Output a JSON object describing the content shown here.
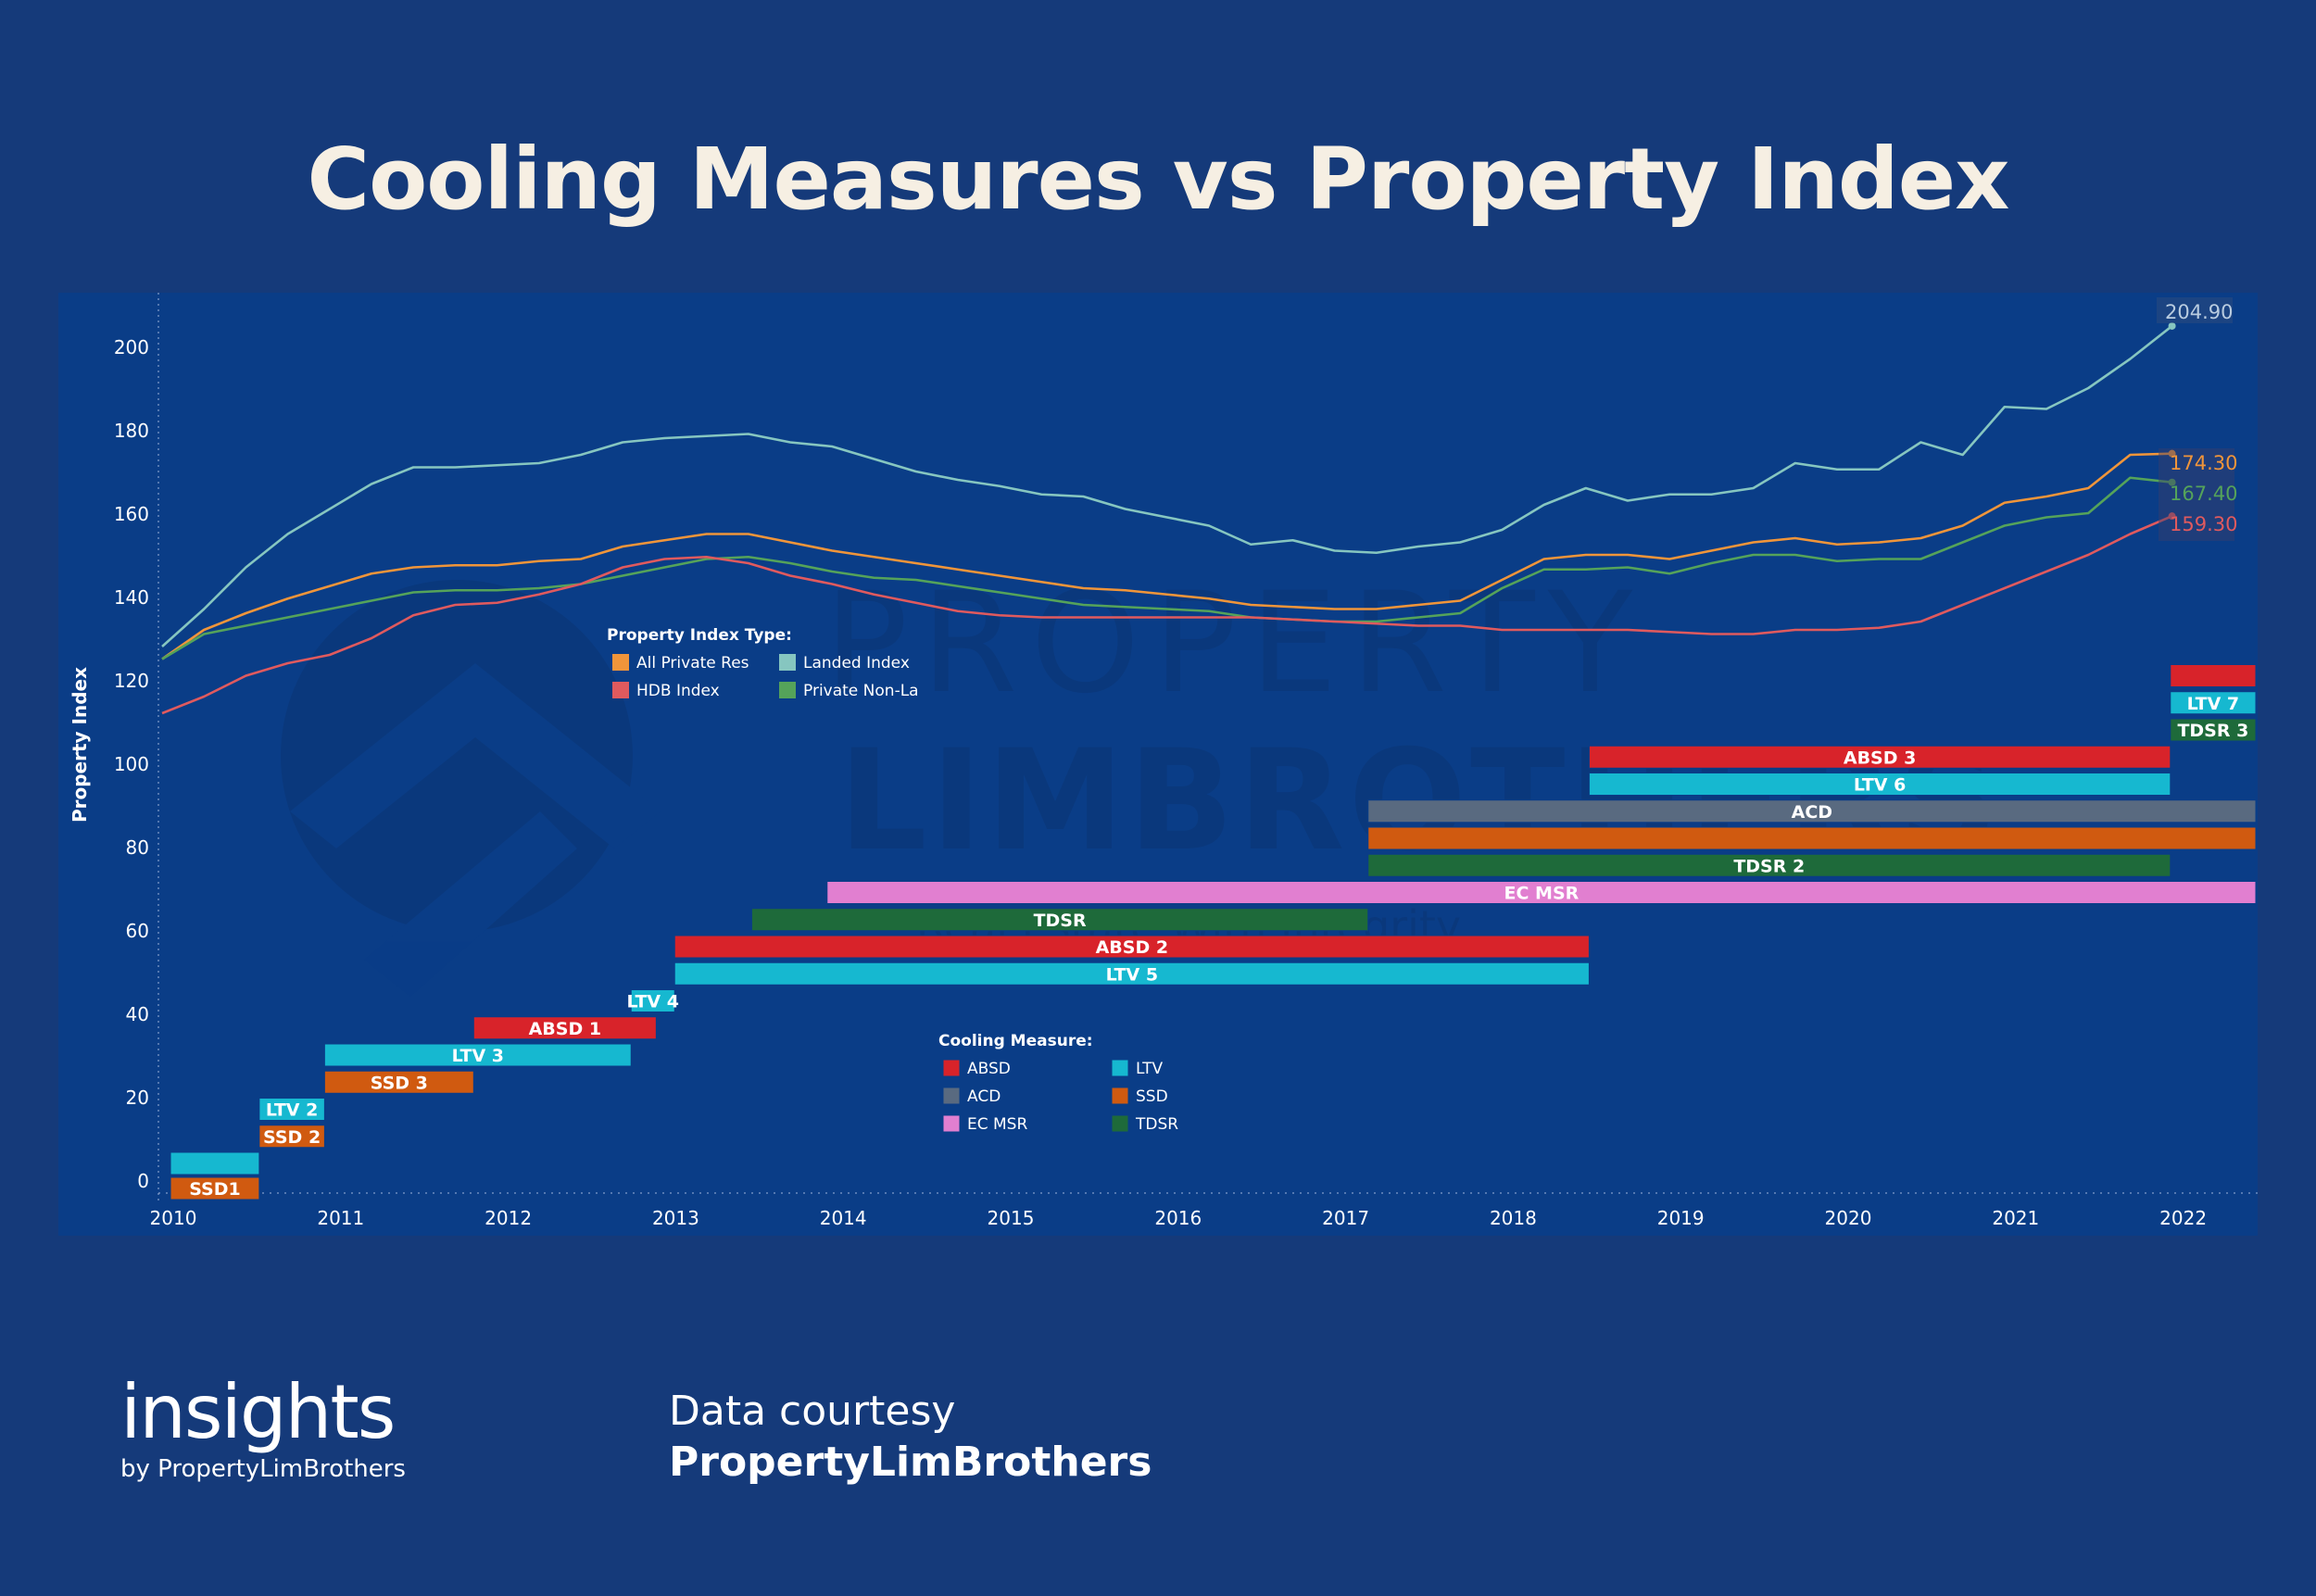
{
  "title": "Cooling Measures vs Property Index",
  "brand": {
    "name": "insights",
    "byline": "by PropertyLimBrothers"
  },
  "credit": {
    "line1": "Data courtesy",
    "line2": "PropertyLimBrothers"
  },
  "watermark": {
    "line1": "PROPERTY",
    "line2": "LIMBROTHERS",
    "tagline": "Real Estate With Integrity"
  },
  "chart_data": {
    "type": "line",
    "ylabel": "Property Index",
    "xlabel": "",
    "ylim": [
      -4,
      210
    ],
    "xlim": [
      2010,
      2022.5
    ],
    "yticks": [
      0,
      20,
      40,
      60,
      80,
      100,
      120,
      140,
      160,
      180,
      200
    ],
    "xticks": [
      2010,
      2011,
      2012,
      2013,
      2014,
      2015,
      2016,
      2017,
      2018,
      2019,
      2020,
      2021,
      2022
    ],
    "colors": {
      "landed": "#86c6c0",
      "allprivate": "#f0953a",
      "nonlanded": "#55a35a",
      "hdb": "#e05a5e",
      "ABSD": "#d8232a",
      "LTV": "#16b8d0",
      "ACD": "#596a80",
      "SSD": "#d05a10",
      "EC MSR": "#e17fd0",
      "TDSR": "#1e6a3a",
      "background": "#153a7a",
      "plot": "#0a3d87"
    },
    "legend_index": {
      "title": "Property Index Type:",
      "items": [
        {
          "label": "All Private Res",
          "key": "allprivate"
        },
        {
          "label": "Landed Index",
          "key": "landed"
        },
        {
          "label": "HDB Index",
          "key": "hdb"
        },
        {
          "label": "Private Non-La",
          "key": "nonlanded"
        }
      ]
    },
    "legend_measures": {
      "title": "Cooling Measure:",
      "items": [
        {
          "label": "ABSD",
          "key": "ABSD"
        },
        {
          "label": "LTV",
          "key": "LTV"
        },
        {
          "label": "ACD",
          "key": "ACD"
        },
        {
          "label": "SSD",
          "key": "SSD"
        },
        {
          "label": "EC MSR",
          "key": "EC MSR"
        },
        {
          "label": "TDSR",
          "key": "TDSR"
        }
      ]
    },
    "x": [
      2010.0,
      2010.25,
      2010.5,
      2010.75,
      2011.0,
      2011.25,
      2011.5,
      2011.75,
      2012.0,
      2012.25,
      2012.5,
      2012.75,
      2013.0,
      2013.25,
      2013.5,
      2013.75,
      2014.0,
      2014.25,
      2014.5,
      2014.75,
      2015.0,
      2015.25,
      2015.5,
      2015.75,
      2016.0,
      2016.25,
      2016.5,
      2016.75,
      2017.0,
      2017.25,
      2017.5,
      2017.75,
      2018.0,
      2018.25,
      2018.5,
      2018.75,
      2019.0,
      2019.25,
      2019.5,
      2019.75,
      2020.0,
      2020.25,
      2020.5,
      2020.75,
      2021.0,
      2021.25,
      2021.5,
      2021.75,
      2022.0
    ],
    "series": [
      {
        "name": "Landed Index",
        "key": "landed",
        "end_label": "204.90",
        "values": [
          128,
          137,
          147,
          155,
          161,
          167,
          171,
          171,
          171.5,
          172,
          174,
          177,
          178,
          178.5,
          179,
          177,
          176,
          173,
          170,
          168,
          166.5,
          164.5,
          164,
          161,
          159,
          157,
          152.5,
          153.5,
          151,
          150.5,
          152,
          153,
          156,
          162,
          166,
          163,
          164.5,
          164.5,
          166,
          172,
          170.5,
          170.5,
          177,
          174,
          185.5,
          185,
          190,
          197,
          204.9
        ]
      },
      {
        "name": "All Private Res",
        "key": "allprivate",
        "end_label": "174.30",
        "values": [
          125,
          132,
          136,
          139.5,
          142.5,
          145.5,
          147,
          147.5,
          147.5,
          148.5,
          149,
          152,
          153.5,
          155,
          155,
          153,
          151,
          149.5,
          148,
          146.5,
          145,
          143.5,
          142,
          141.5,
          140.5,
          139.5,
          138,
          137.5,
          137,
          137,
          138,
          139,
          144,
          149,
          150,
          150,
          149,
          151,
          153,
          154,
          152.5,
          153,
          154,
          157,
          162.5,
          164,
          166,
          174,
          174.3
        ]
      },
      {
        "name": "Private Non-La",
        "key": "nonlanded",
        "end_label": "167.40",
        "values": [
          125,
          131,
          133,
          135,
          137,
          139,
          141,
          141.5,
          141.5,
          142,
          143,
          145,
          147,
          149,
          149.5,
          148,
          146,
          144.5,
          144,
          142.5,
          141,
          139.5,
          138,
          137.5,
          137,
          136.5,
          135,
          134.5,
          134,
          134,
          135,
          136,
          142,
          146.5,
          146.5,
          147,
          145.5,
          148,
          150,
          150,
          148.5,
          149,
          149,
          153,
          157,
          159,
          160,
          168.5,
          167.4
        ]
      },
      {
        "name": "HDB Index",
        "key": "hdb",
        "end_label": "159.30",
        "values": [
          112,
          116,
          121,
          124,
          126,
          130,
          135.5,
          138,
          138.5,
          140.5,
          143,
          147,
          149,
          149.5,
          148,
          145,
          143,
          140.5,
          138.5,
          136.5,
          135.5,
          135,
          135,
          135,
          135,
          135,
          135,
          134.5,
          134,
          133.5,
          133,
          133,
          132,
          132,
          132,
          132,
          131.5,
          131,
          131,
          132,
          132,
          132.5,
          134,
          138,
          142,
          146,
          150,
          155,
          159.3
        ]
      }
    ],
    "measures": [
      {
        "label": "",
        "type": "LTV",
        "start": 2010.05,
        "end": 2010.58,
        "y": 4
      },
      {
        "label": "SSD1",
        "type": "SSD",
        "start": 2010.05,
        "end": 2010.58,
        "y": -2
      },
      {
        "label": "LTV 2",
        "type": "LTV",
        "start": 2010.58,
        "end": 2010.97,
        "y": 17
      },
      {
        "label": "SSD 2",
        "type": "SSD",
        "start": 2010.58,
        "end": 2010.97,
        "y": 10.5
      },
      {
        "label": "LTV 3",
        "type": "LTV",
        "start": 2010.97,
        "end": 2012.8,
        "y": 30
      },
      {
        "label": "SSD 3",
        "type": "SSD",
        "start": 2010.97,
        "end": 2011.86,
        "y": 23.5
      },
      {
        "label": "ABSD 1",
        "type": "ABSD",
        "start": 2011.86,
        "end": 2012.95,
        "y": 36.5
      },
      {
        "label": "LTV 4",
        "type": "LTV",
        "start": 2012.8,
        "end": 2013.06,
        "y": 43
      },
      {
        "label": "LTV 5",
        "type": "LTV",
        "start": 2013.06,
        "end": 2018.52,
        "y": 49.5
      },
      {
        "label": "ABSD 2",
        "type": "ABSD",
        "start": 2013.06,
        "end": 2018.52,
        "y": 56
      },
      {
        "label": "TDSR",
        "type": "TDSR",
        "start": 2013.52,
        "end": 2017.2,
        "y": 62.5
      },
      {
        "label": "EC MSR",
        "type": "EC MSR",
        "start": 2013.97,
        "end": 2022.5,
        "y": 69
      },
      {
        "label": "TDSR 2",
        "type": "TDSR",
        "start": 2017.2,
        "end": 2021.99,
        "y": 75.5
      },
      {
        "label": "",
        "type": "SSD",
        "start": 2017.2,
        "end": 2022.5,
        "y": 82
      },
      {
        "label": "ACD",
        "type": "ACD",
        "start": 2017.2,
        "end": 2022.5,
        "y": 88.5
      },
      {
        "label": "LTV 6",
        "type": "LTV",
        "start": 2018.52,
        "end": 2021.99,
        "y": 95
      },
      {
        "label": "ABSD 3",
        "type": "ABSD",
        "start": 2018.52,
        "end": 2021.99,
        "y": 101.5
      },
      {
        "label": "TDSR 3",
        "type": "TDSR",
        "start": 2021.99,
        "end": 2022.5,
        "y": 108
      },
      {
        "label": "LTV 7",
        "type": "LTV",
        "start": 2021.99,
        "end": 2022.5,
        "y": 114.5
      },
      {
        "label": "",
        "type": "ABSD",
        "start": 2021.99,
        "end": 2022.5,
        "y": 121
      }
    ]
  }
}
